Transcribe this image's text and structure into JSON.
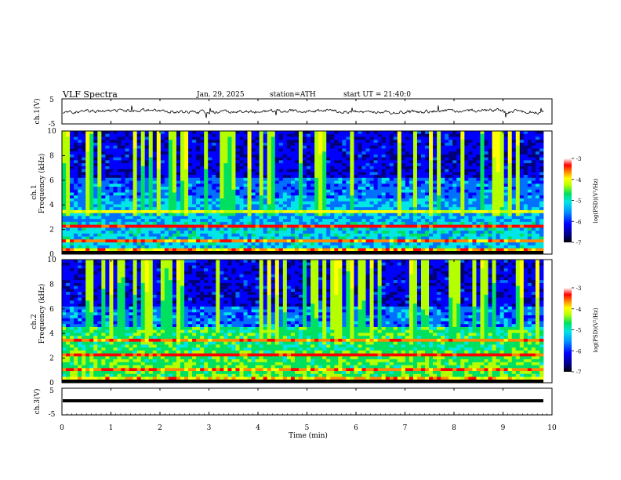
{
  "header": {
    "title": "VLF Spectra",
    "date": "Jan. 29, 2025",
    "station": "station=ATH",
    "start_ut": "start UT = 21:40:0"
  },
  "chart_data": {
    "type": "heatmap",
    "title": "VLF Spectra",
    "x": {
      "label": "Time (min)",
      "range": [
        0,
        10
      ],
      "ticks": [
        "0",
        "1",
        "2",
        "3",
        "4",
        "5",
        "6",
        "7",
        "8",
        "9",
        "10"
      ]
    },
    "panels": [
      {
        "id": "ch1-voltage",
        "type": "line",
        "ylabel": "ch.1(V)",
        "ylim": [
          -5,
          5
        ],
        "ticks": [
          "5",
          "-5"
        ]
      },
      {
        "id": "ch1-spectrogram",
        "type": "heatmap",
        "channel_label": "ch.1",
        "ylabel": "Frequency (kHz)",
        "ylim": [
          0,
          10
        ],
        "ticks": [
          "0",
          "2",
          "4",
          "6",
          "8",
          "10"
        ],
        "colorbar": {
          "label": "log(PSD)(V²/Hz)",
          "range": [
            -7,
            -3
          ],
          "ticks": [
            "-3",
            "-4",
            "-5",
            "-6",
            "-7"
          ]
        }
      },
      {
        "id": "ch2-spectrogram",
        "type": "heatmap",
        "channel_label": "ch.2",
        "ylabel": "Frequency (kHz)",
        "ylim": [
          0,
          10
        ],
        "ticks": [
          "0",
          "2",
          "4",
          "6",
          "8",
          "10"
        ],
        "colorbar": {
          "label": "log(PSD)(V²/Hz)",
          "range": [
            -7,
            -3
          ],
          "ticks": [
            "-3",
            "-4",
            "-5",
            "-6",
            "-7"
          ]
        }
      },
      {
        "id": "ch3-voltage",
        "type": "line",
        "ylabel": "ch.3(V)",
        "ylim": [
          -5,
          5
        ],
        "ticks": [
          "5",
          "-5"
        ]
      }
    ],
    "colormap": [
      "#000000",
      "#00007a",
      "#0000ff",
      "#0070ff",
      "#00e5e5",
      "#00e060",
      "#b4ff00",
      "#ffff00",
      "#ff8800",
      "#ff0000",
      "#ffffff"
    ]
  }
}
